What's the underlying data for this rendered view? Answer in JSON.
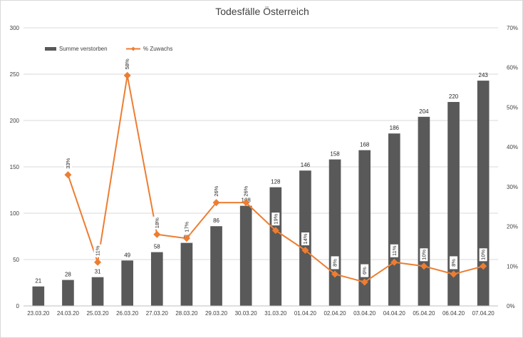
{
  "chart_data": {
    "type": "bar",
    "title": "Todesfälle Österreich",
    "categories": [
      "23.03.20",
      "24.03.20",
      "25.03.20",
      "26.03.20",
      "27.03.20",
      "28.03.20",
      "29.03.20",
      "30.03.20",
      "31.03.20",
      "01.04.20",
      "02.04.20",
      "03.04.20",
      "04.04.20",
      "05.04.20",
      "06.04.20",
      "07.04.20"
    ],
    "series": [
      {
        "name": "Summe verstorben",
        "kind": "bar",
        "axis": "left",
        "color": "#595959",
        "values": [
          21,
          28,
          31,
          49,
          58,
          68,
          86,
          108,
          128,
          146,
          158,
          168,
          186,
          204,
          220,
          243
        ],
        "labels": [
          "21",
          "28",
          "31",
          "49",
          "58",
          "68",
          "86",
          "108",
          "128",
          "146",
          "158",
          "168",
          "186",
          "204",
          "220",
          "243"
        ]
      },
      {
        "name": "% Zuwachs",
        "kind": "line",
        "axis": "right",
        "color": "#ED7D31",
        "values": [
          null,
          33,
          11,
          58,
          18,
          17,
          26,
          26,
          19,
          14,
          8,
          6,
          11,
          10,
          8,
          10
        ],
        "labels": [
          "",
          "33%",
          "11%",
          "58%",
          "18%",
          "17%",
          "26%",
          "26%",
          "19%",
          "14%",
          "8%",
          "6%",
          "11%",
          "10%",
          "8%",
          "10%"
        ]
      }
    ],
    "y_left": {
      "min": 0,
      "max": 300,
      "ticks": [
        "0",
        "50",
        "100",
        "150",
        "200",
        "250",
        "300"
      ]
    },
    "y_right": {
      "min": 0,
      "max": 70,
      "ticks": [
        "0%",
        "10%",
        "20%",
        "30%",
        "40%",
        "50%",
        "60%",
        "70%"
      ]
    },
    "grid": true,
    "legend_position": "top-left"
  }
}
